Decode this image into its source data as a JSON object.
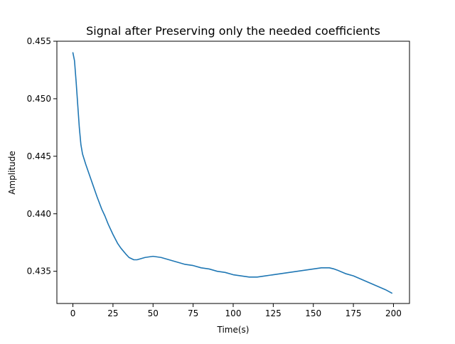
{
  "chart_data": {
    "type": "line",
    "title": "Signal after Preserving only the needed coefficients",
    "xlabel": "Time(s)",
    "ylabel": "Amplitude",
    "xlim": [
      -10,
      210
    ],
    "ylim": [
      0.4322,
      0.455
    ],
    "xticks": [
      0,
      25,
      50,
      75,
      100,
      125,
      150,
      175,
      200
    ],
    "yticks": [
      0.435,
      0.44,
      0.445,
      0.45,
      0.455
    ],
    "ytick_labels": [
      "0.435",
      "0.440",
      "0.445",
      "0.450",
      "0.455"
    ],
    "grid": false,
    "line_color": "#1f77b4",
    "series": [
      {
        "x": [
          0,
          1,
          2,
          3,
          4,
          5,
          6,
          8,
          10,
          12,
          15,
          18,
          20,
          22,
          25,
          28,
          30,
          33,
          35,
          38,
          40,
          45,
          50,
          55,
          60,
          65,
          70,
          75,
          80,
          85,
          90,
          95,
          100,
          105,
          110,
          115,
          120,
          125,
          130,
          135,
          140,
          145,
          150,
          155,
          158,
          160,
          163,
          165,
          170,
          175,
          180,
          185,
          190,
          195,
          199
        ],
        "values": [
          0.454,
          0.4533,
          0.4515,
          0.4495,
          0.4475,
          0.446,
          0.4452,
          0.4443,
          0.4435,
          0.4427,
          0.4415,
          0.4404,
          0.4398,
          0.4391,
          0.4382,
          0.4374,
          0.437,
          0.4365,
          0.4362,
          0.436,
          0.436,
          0.4362,
          0.4363,
          0.4362,
          0.436,
          0.4358,
          0.4356,
          0.4355,
          0.4353,
          0.4352,
          0.435,
          0.4349,
          0.4347,
          0.4346,
          0.4345,
          0.4345,
          0.4346,
          0.4347,
          0.4348,
          0.4349,
          0.435,
          0.4351,
          0.4352,
          0.4353,
          0.4353,
          0.4353,
          0.4352,
          0.4351,
          0.4348,
          0.4346,
          0.4343,
          0.434,
          0.4337,
          0.4334,
          0.4331
        ]
      }
    ]
  }
}
